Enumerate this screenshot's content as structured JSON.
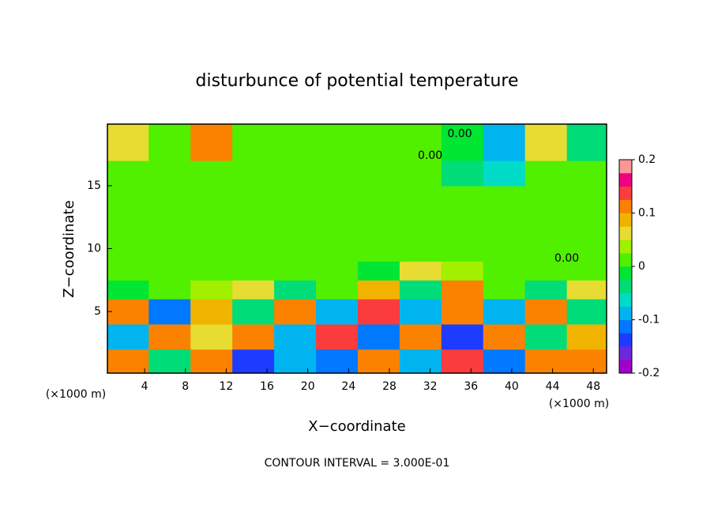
{
  "chart_data": {
    "type": "heatmap",
    "title": "disturbunce of potential temperature",
    "x_label": "X−coordinate",
    "y_label": "Z−coordinate",
    "x_unit_left": "(×1000 m)",
    "x_unit_right": "(×1000 m)",
    "footer": "CONTOUR INTERVAL = 3.000E-01",
    "xlim": [
      0.35,
      49.3
    ],
    "ylim": [
      0.1,
      19.9
    ],
    "xticks": [
      4,
      8,
      12,
      16,
      20,
      24,
      28,
      32,
      36,
      40,
      44,
      48
    ],
    "yticks": [
      5,
      10,
      15
    ],
    "x_edges": [
      0.35,
      4.4,
      8.5,
      12.6,
      16.7,
      20.8,
      24.9,
      29,
      33.1,
      37.2,
      41.3,
      45.4,
      49.3
    ],
    "y_edges": [
      0.1,
      2,
      4,
      6,
      7.5,
      9,
      11,
      13,
      15,
      17,
      19.9
    ],
    "values": [
      [
        0.12,
        -0.05,
        0.1,
        -0.15,
        -0.1,
        -0.12,
        0.12,
        -0.1,
        0.15,
        -0.12,
        0.1,
        0.12
      ],
      [
        -0.1,
        0.12,
        0.05,
        0.1,
        -0.08,
        0.15,
        -0.12,
        0.1,
        -0.15,
        0.12,
        -0.05,
        0.08
      ],
      [
        0.1,
        -0.12,
        0.08,
        -0.05,
        0.12,
        -0.1,
        0.15,
        -0.08,
        0.12,
        -0.1,
        0.12,
        -0.05
      ],
      [
        -0.02,
        0.02,
        0.03,
        0.05,
        -0.03,
        0.02,
        0.08,
        -0.05,
        0.1,
        0.02,
        -0.03,
        0.05
      ],
      [
        0,
        0,
        0,
        0,
        0.02,
        0,
        -0.02,
        0.05,
        0.03,
        0,
        0.02,
        0
      ],
      [
        0.01,
        0.01,
        0.01,
        0.01,
        0.01,
        0.01,
        0.01,
        0,
        0,
        0,
        0,
        0
      ],
      [
        0.01,
        0.01,
        0.01,
        0.01,
        0.01,
        0.01,
        0.01,
        0,
        0,
        0,
        0,
        0
      ],
      [
        0.01,
        0.01,
        0.01,
        0.01,
        0.01,
        0.01,
        0.01,
        0,
        0,
        0,
        0,
        0
      ],
      [
        0.01,
        0.01,
        0.01,
        0.01,
        0.01,
        0.01,
        0.01,
        0.01,
        -0.03,
        -0.06,
        0,
        0
      ],
      [
        0.05,
        0.02,
        0.1,
        0.01,
        0,
        0,
        0.01,
        0.02,
        -0.02,
        -0.1,
        0.05,
        -0.05
      ]
    ],
    "contour_labels": [
      {
        "text": "0.00",
        "x": 34.9,
        "y": 19.1
      },
      {
        "text": "0.00",
        "x": 32.0,
        "y": 17.4
      },
      {
        "text": "0.00",
        "x": 45.4,
        "y": 9.2
      }
    ],
    "colorbar": {
      "lim": [
        -0.2,
        0.2
      ],
      "ticks": [
        -0.2,
        -0.1,
        0,
        0.1,
        0.2
      ],
      "colors": [
        "#a000c8",
        "#6e28dc",
        "#1e3cff",
        "#0078ff",
        "#00b4f0",
        "#00dcc8",
        "#00dc78",
        "#00e632",
        "#50f000",
        "#a0f000",
        "#e6dc32",
        "#f0b400",
        "#fa8200",
        "#fa3c3c",
        "#f00082",
        "#ff9696"
      ]
    }
  }
}
